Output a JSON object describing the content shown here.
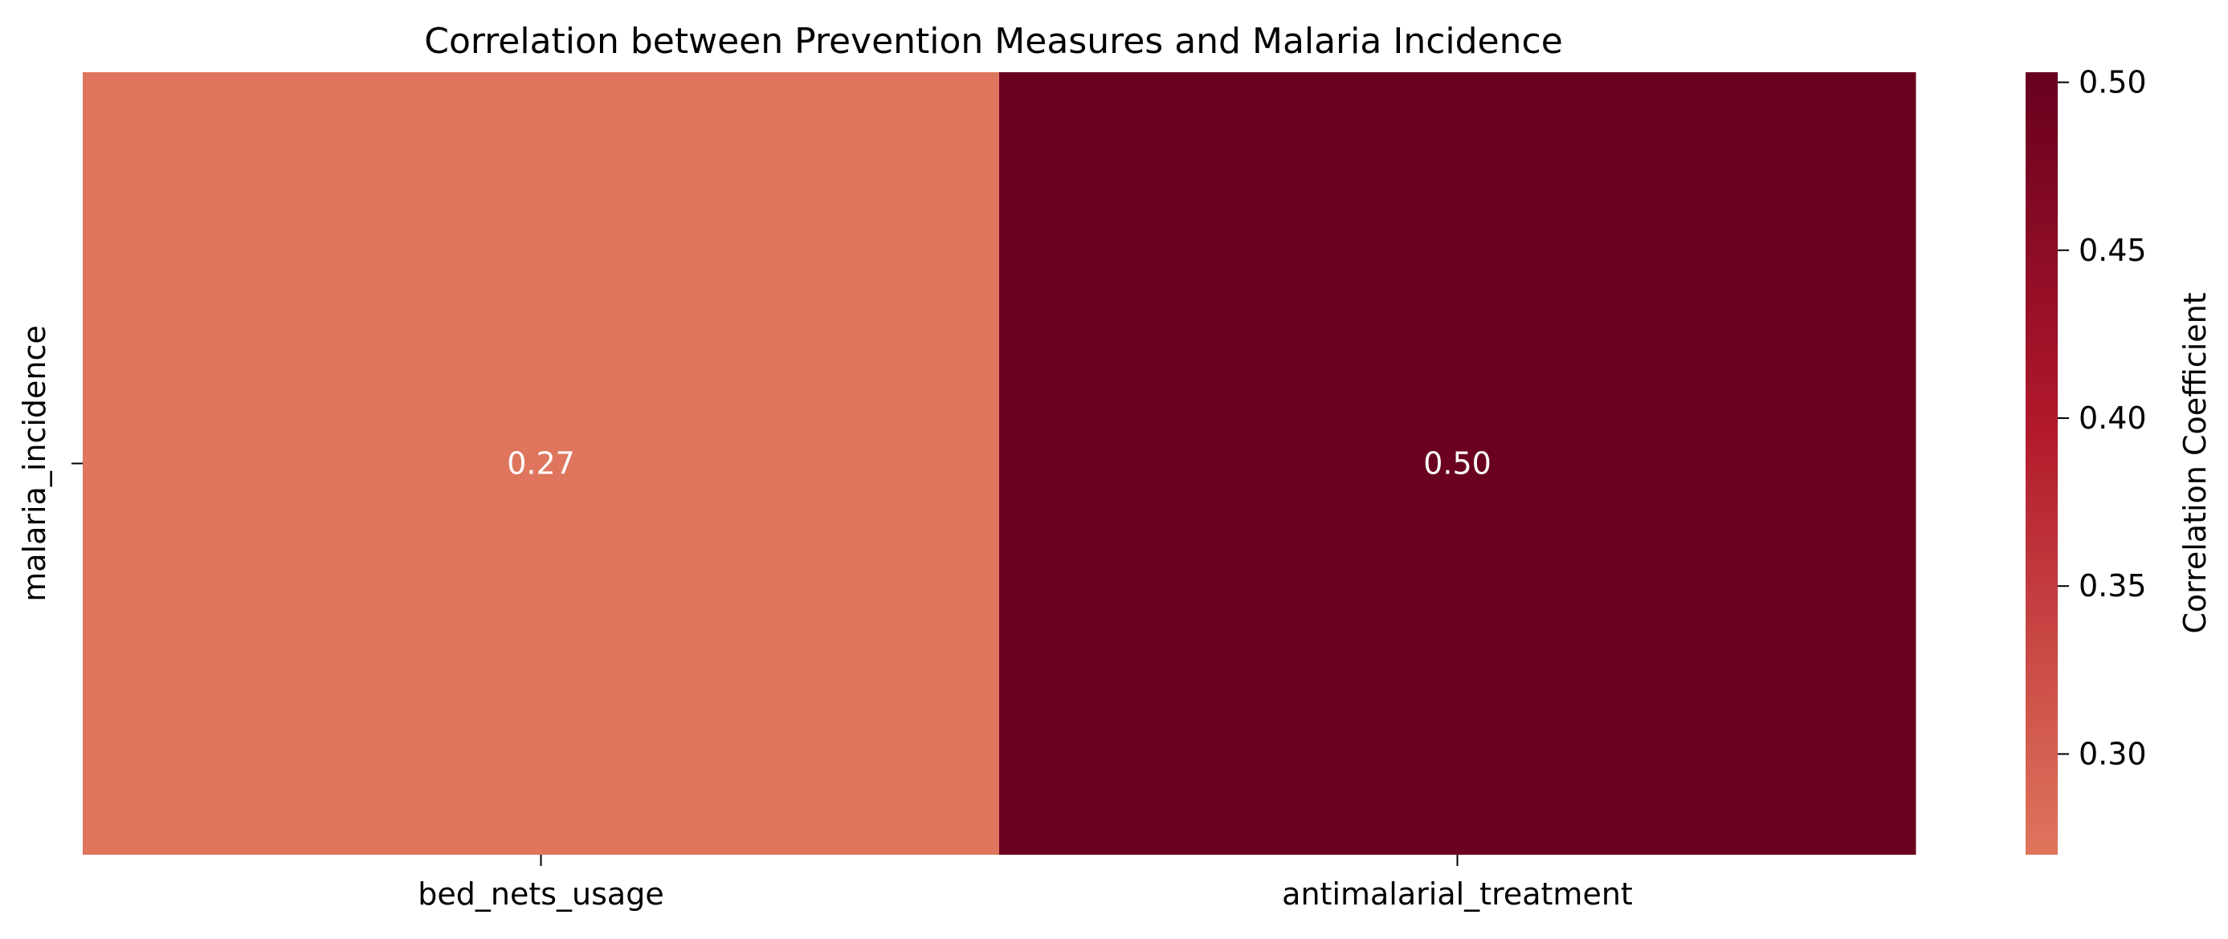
{
  "chart_data": {
    "type": "heatmap",
    "title": "Correlation between Prevention Measures and Malaria Incidence",
    "rows": [
      "malaria_incidence"
    ],
    "columns": [
      "bed_nets_usage",
      "antimalarial_treatment"
    ],
    "values": [
      [
        0.27,
        0.5
      ]
    ],
    "value_labels": [
      [
        "0.27",
        "0.50"
      ]
    ],
    "colorbar": {
      "label": "Correlation Coefficient",
      "range": [
        0.27,
        0.503
      ],
      "ticks": [
        0.3,
        0.35,
        0.4,
        0.45,
        0.5
      ],
      "tick_labels": [
        "0.30",
        "0.35",
        "0.40",
        "0.45",
        "0.50"
      ],
      "colors": [
        "#df755d",
        "#b1182b",
        "#67001f"
      ]
    },
    "grid": false
  }
}
